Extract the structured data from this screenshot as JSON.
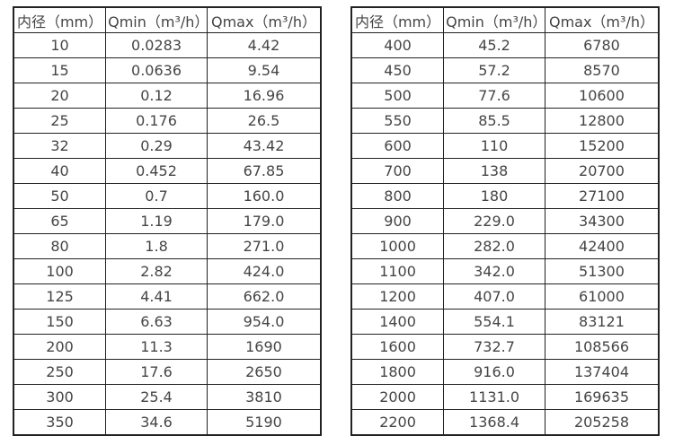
{
  "page": {
    "background_color": "#ffffff",
    "text_color": "#454545",
    "border_color": "#222222"
  },
  "chart_data": [
    {
      "type": "table",
      "columns": [
        "内径（mm）",
        "Qmin（m³/h）",
        "Qmax（m³/h）"
      ],
      "rows": [
        [
          "10",
          "0.0283",
          "4.42"
        ],
        [
          "15",
          "0.0636",
          "9.54"
        ],
        [
          "20",
          "0.12",
          "16.96"
        ],
        [
          "25",
          "0.176",
          "26.5"
        ],
        [
          "32",
          "0.29",
          "43.42"
        ],
        [
          "40",
          "0.452",
          "67.85"
        ],
        [
          "50",
          "0.7",
          "160.0"
        ],
        [
          "65",
          "1.19",
          "179.0"
        ],
        [
          "80",
          "1.8",
          "271.0"
        ],
        [
          "100",
          "2.82",
          "424.0"
        ],
        [
          "125",
          "4.41",
          "662.0"
        ],
        [
          "150",
          "6.63",
          "954.0"
        ],
        [
          "200",
          "11.3",
          "1690"
        ],
        [
          "250",
          "17.6",
          "2650"
        ],
        [
          "300",
          "25.4",
          "3810"
        ],
        [
          "350",
          "34.6",
          "5190"
        ]
      ]
    },
    {
      "type": "table",
      "columns": [
        "内径（mm）",
        "Qmin（m³/h）",
        "Qmax（m³/h）"
      ],
      "rows": [
        [
          "400",
          "45.2",
          "6780"
        ],
        [
          "450",
          "57.2",
          "8570"
        ],
        [
          "500",
          "77.6",
          "10600"
        ],
        [
          "550",
          "85.5",
          "12800"
        ],
        [
          "600",
          "110",
          "15200"
        ],
        [
          "700",
          "138",
          "20700"
        ],
        [
          "800",
          "180",
          "27100"
        ],
        [
          "900",
          "229.0",
          "34300"
        ],
        [
          "1000",
          "282.0",
          "42400"
        ],
        [
          "1100",
          "342.0",
          "51300"
        ],
        [
          "1200",
          "407.0",
          "61000"
        ],
        [
          "1400",
          "554.1",
          "83121"
        ],
        [
          "1600",
          "732.7",
          "108566"
        ],
        [
          "1800",
          "916.0",
          "137404"
        ],
        [
          "2000",
          "1131.0",
          "169635"
        ],
        [
          "2200",
          "1368.4",
          "205258"
        ]
      ]
    }
  ]
}
